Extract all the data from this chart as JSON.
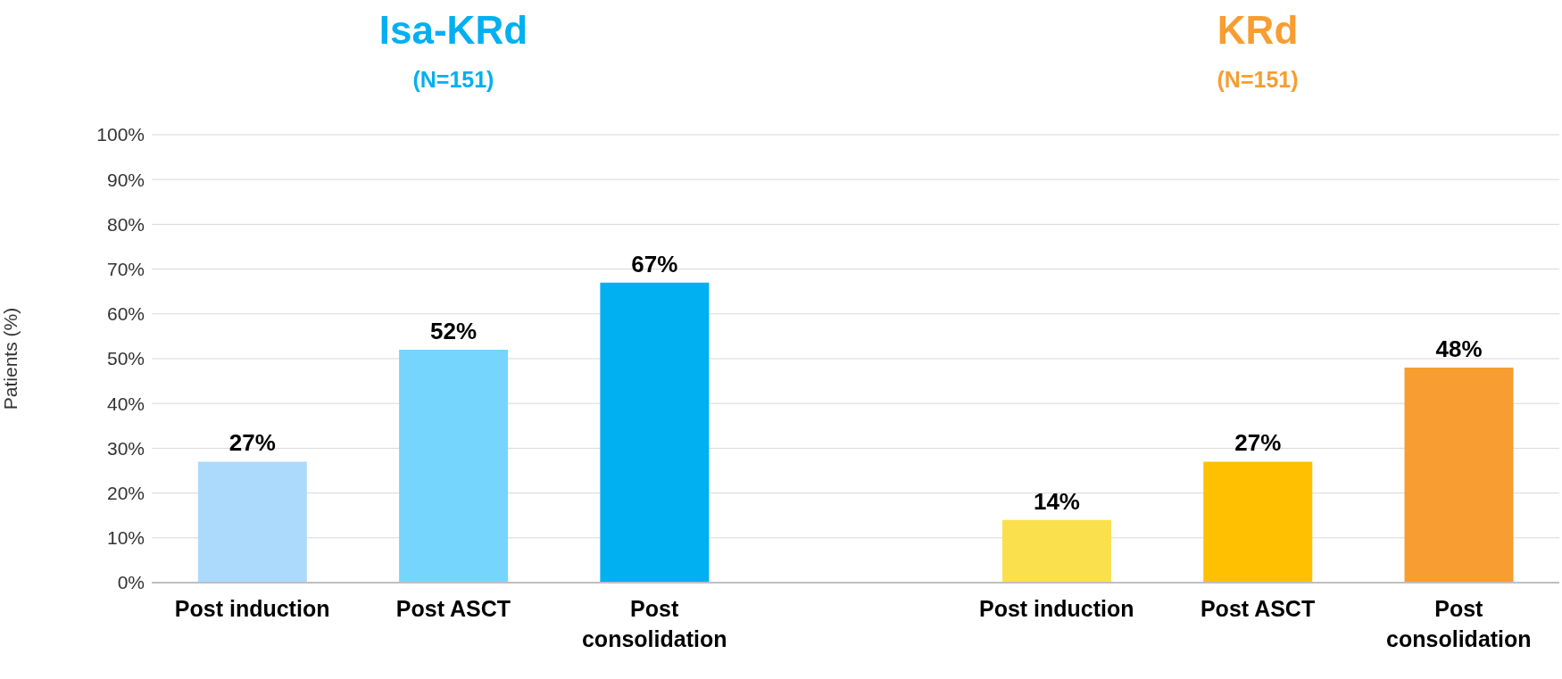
{
  "chart_data": {
    "type": "bar",
    "ylabel": "Patients (%)",
    "categories": [
      "Post induction",
      "Post ASCT",
      "Post consolidation",
      null,
      "Post induction",
      "Post ASCT",
      "Post consolidation"
    ],
    "values": [
      27,
      52,
      67,
      null,
      14,
      27,
      48
    ],
    "value_labels": [
      "27%",
      "52%",
      "67%",
      null,
      "14%",
      "27%",
      "48%"
    ],
    "colors": [
      "#acdafc",
      "#75d5fc",
      "#00b0f0",
      "#ffffff",
      "#fae04c",
      "#fec000",
      "#f79d32"
    ],
    "ylim": [
      0,
      100
    ],
    "yticks": [
      {
        "value": 0,
        "label": "0%"
      },
      {
        "value": 10,
        "label": "10%"
      },
      {
        "value": 20,
        "label": "20%"
      },
      {
        "value": 30,
        "label": "30%"
      },
      {
        "value": 40,
        "label": "40%"
      },
      {
        "value": 50,
        "label": "50%"
      },
      {
        "value": 60,
        "label": "60%"
      },
      {
        "value": 70,
        "label": "70%"
      },
      {
        "value": 80,
        "label": "80%"
      },
      {
        "value": 90,
        "label": "90%"
      },
      {
        "value": 100,
        "label": "100%"
      }
    ],
    "grid": "y",
    "annotations": [
      "Isa-KRd",
      "(N=151)",
      "KRd",
      "(N=151)"
    ]
  }
}
